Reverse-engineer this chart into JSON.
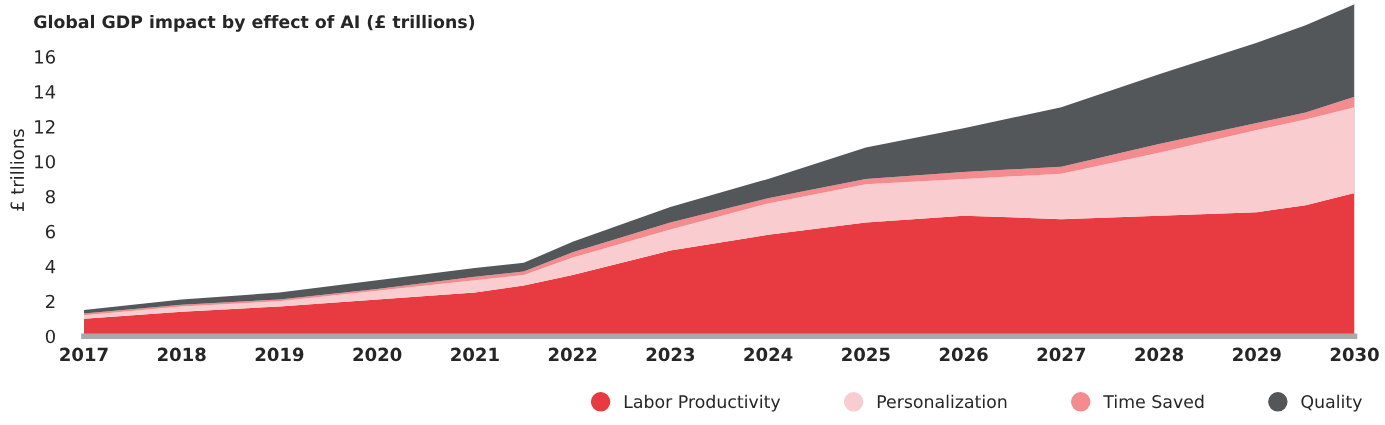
{
  "chart_data": {
    "type": "area",
    "stacked": true,
    "title": "Global GDP impact by effect of AI (£ trillions)",
    "ylabel": "£ trillions",
    "x": [
      2017,
      2018,
      2019,
      2020,
      2021,
      2021.5,
      2022,
      2023,
      2024,
      2025,
      2026,
      2027,
      2028,
      2029,
      2029.5,
      2030
    ],
    "series": [
      {
        "name": "Labor Productivity",
        "color": "#e83a41",
        "values": [
          1.0,
          1.4,
          1.7,
          2.1,
          2.5,
          2.9,
          3.5,
          4.9,
          5.8,
          6.5,
          6.9,
          6.7,
          6.9,
          7.1,
          7.5,
          8.2
        ]
      },
      {
        "name": "Personalization",
        "color": "#f9cdcf",
        "values": [
          0.2,
          0.3,
          0.3,
          0.5,
          0.7,
          0.6,
          1.0,
          1.2,
          1.8,
          2.2,
          2.1,
          2.6,
          3.6,
          4.7,
          4.9,
          4.9
        ]
      },
      {
        "name": "Time Saved",
        "color": "#f48b8e",
        "values": [
          0.1,
          0.1,
          0.1,
          0.1,
          0.2,
          0.2,
          0.3,
          0.4,
          0.3,
          0.3,
          0.4,
          0.4,
          0.5,
          0.4,
          0.4,
          0.6
        ]
      },
      {
        "name": "Quality",
        "color": "#54575a",
        "values": [
          0.2,
          0.3,
          0.4,
          0.5,
          0.5,
          0.5,
          0.6,
          0.9,
          1.1,
          1.8,
          2.5,
          3.4,
          4.0,
          4.6,
          5.0,
          5.3
        ]
      }
    ],
    "xlim": [
      2017,
      2030
    ],
    "xticks": [
      2017,
      2018,
      2019,
      2020,
      2021,
      2022,
      2023,
      2024,
      2025,
      2026,
      2027,
      2028,
      2029,
      2030
    ],
    "ylim": [
      0,
      19
    ],
    "yticks": [
      0,
      2,
      4,
      6,
      8,
      10,
      12,
      14,
      16
    ],
    "grid": false,
    "legend": "bottom right"
  }
}
